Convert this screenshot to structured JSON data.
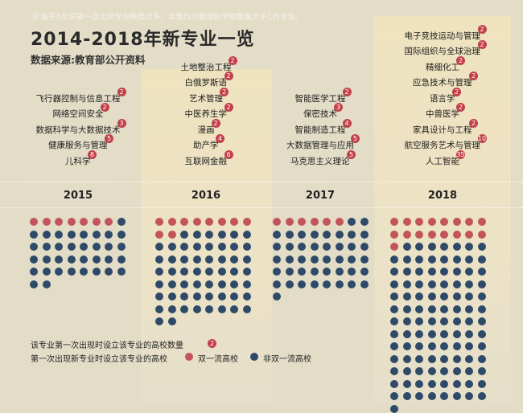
{
  "note": "注:由于5年间第一次出现专业种类过多，本表均为新增的学校数量大于1的专业。",
  "title": "2014-2018年新专业一览",
  "subtitle": "数据来源:教育部公开资料",
  "colors": {
    "red": "#c2545a",
    "blue": "#2f4a68",
    "badge": "#c2404a"
  },
  "chart_data": {
    "type": "dot-matrix",
    "title": "2014-2018年新专业一览",
    "columns": [
      {
        "year": "2015",
        "majors": [
          {
            "name": "飞行器控制与信息工程",
            "count": 2
          },
          {
            "name": "网络空间安全",
            "count": 2
          },
          {
            "name": "数据科学与大数据技术",
            "count": 3
          },
          {
            "name": "健康服务与管理",
            "count": 5
          },
          {
            "name": "儿科学",
            "count": 8
          }
        ],
        "double_first_class": 7,
        "non_double_first_class": 35
      },
      {
        "year": "2016",
        "majors": [
          {
            "name": "土地整治工程",
            "count": 2
          },
          {
            "name": "白俄罗斯语",
            "count": 2
          },
          {
            "name": "艺术管理",
            "count": 2
          },
          {
            "name": "中医养生学",
            "count": 2
          },
          {
            "name": "漫画",
            "count": 2
          },
          {
            "name": "助产学",
            "count": 4
          },
          {
            "name": "互联网金融",
            "count": 6
          }
        ],
        "double_first_class": 10,
        "non_double_first_class": 56
      },
      {
        "year": "2017",
        "majors": [
          {
            "name": "智能医学工程",
            "count": 2
          },
          {
            "name": "保密技术",
            "count": 3
          },
          {
            "name": "智能制造工程",
            "count": 4
          },
          {
            "name": "大数据管理与应用",
            "count": 5
          },
          {
            "name": "马克思主义理论",
            "count": 5
          }
        ],
        "double_first_class": 6,
        "non_double_first_class": 43
      },
      {
        "year": "2018",
        "majors": [
          {
            "name": "电子竞技运动与管理",
            "count": 2
          },
          {
            "name": "国际组织与全球治理",
            "count": 2
          },
          {
            "name": "精细化工",
            "count": 2
          },
          {
            "name": "应急技术与管理",
            "count": 2
          },
          {
            "name": "语言学",
            "count": 2
          },
          {
            "name": "中兽医学",
            "count": 2
          },
          {
            "name": "家具设计与工程",
            "count": 2
          },
          {
            "name": "航空服务艺术与管理",
            "count": 10
          },
          {
            "name": "人工智能",
            "count": 35
          }
        ],
        "double_first_class": 17,
        "non_double_first_class": 104
      }
    ]
  },
  "legend": {
    "badge_text": "该专业第一次出现时设立该专业的高校数量",
    "badge_example": "2",
    "dots_text": "第一次出现新专业时设立该专业的高校",
    "red_label": "双一流高校",
    "blue_label": "非双一流高校"
  }
}
